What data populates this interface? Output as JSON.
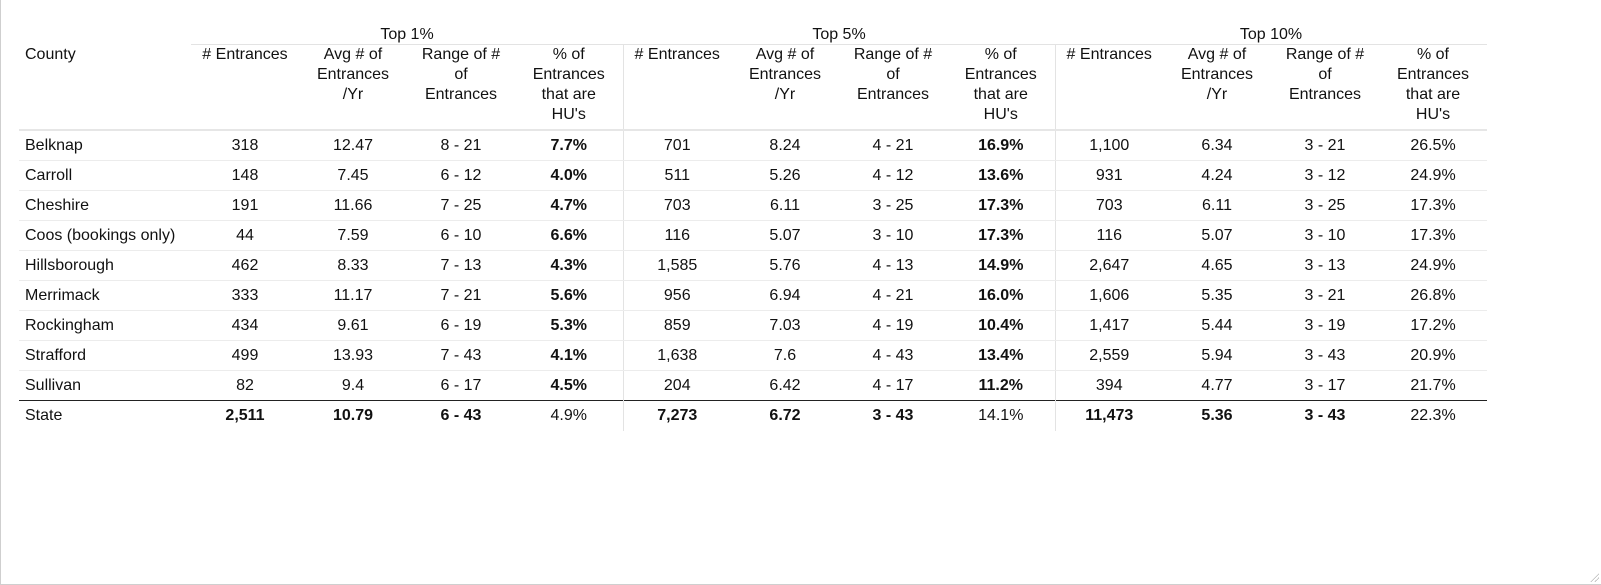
{
  "groups": [
    "Top 1%",
    "Top 5%",
    "Top 10%"
  ],
  "headers": {
    "county": "County",
    "entrances": "# Entrances",
    "avg": [
      "Avg # of",
      "Entrances",
      "/Yr"
    ],
    "range": [
      "Range of #",
      "of",
      "Entrances"
    ],
    "pct": [
      "% of",
      "Entrances",
      "that are",
      "HU's"
    ]
  },
  "rows": [
    {
      "county": "Belknap",
      "t1": {
        "n": "318",
        "avg": "12.47",
        "range": "8 - 21",
        "pct": "7.7%"
      },
      "t5": {
        "n": "701",
        "avg": "8.24",
        "range": "4 - 21",
        "pct": "16.9%"
      },
      "t10": {
        "n": "1,100",
        "avg": "6.34",
        "range": "3 - 21",
        "pct": "26.5%"
      }
    },
    {
      "county": "Carroll",
      "t1": {
        "n": "148",
        "avg": "7.45",
        "range": "6 - 12",
        "pct": "4.0%"
      },
      "t5": {
        "n": "511",
        "avg": "5.26",
        "range": "4 - 12",
        "pct": "13.6%"
      },
      "t10": {
        "n": "931",
        "avg": "4.24",
        "range": "3 - 12",
        "pct": "24.9%"
      }
    },
    {
      "county": "Cheshire",
      "t1": {
        "n": "191",
        "avg": "11.66",
        "range": "7 - 25",
        "pct": "4.7%"
      },
      "t5": {
        "n": "703",
        "avg": "6.11",
        "range": "3 - 25",
        "pct": "17.3%"
      },
      "t10": {
        "n": "703",
        "avg": "6.11",
        "range": "3 - 25",
        "pct": "17.3%"
      }
    },
    {
      "county": "Coos (bookings only)",
      "t1": {
        "n": "44",
        "avg": "7.59",
        "range": "6 - 10",
        "pct": "6.6%"
      },
      "t5": {
        "n": "116",
        "avg": "5.07",
        "range": "3 - 10",
        "pct": "17.3%"
      },
      "t10": {
        "n": "116",
        "avg": "5.07",
        "range": "3 - 10",
        "pct": "17.3%"
      }
    },
    {
      "county": "Hillsborough",
      "t1": {
        "n": "462",
        "avg": "8.33",
        "range": "7 - 13",
        "pct": "4.3%"
      },
      "t5": {
        "n": "1,585",
        "avg": "5.76",
        "range": "4 - 13",
        "pct": "14.9%"
      },
      "t10": {
        "n": "2,647",
        "avg": "4.65",
        "range": "3 - 13",
        "pct": "24.9%"
      }
    },
    {
      "county": "Merrimack",
      "t1": {
        "n": "333",
        "avg": "11.17",
        "range": "7 - 21",
        "pct": "5.6%"
      },
      "t5": {
        "n": "956",
        "avg": "6.94",
        "range": "4 - 21",
        "pct": "16.0%"
      },
      "t10": {
        "n": "1,606",
        "avg": "5.35",
        "range": "3 - 21",
        "pct": "26.8%"
      }
    },
    {
      "county": "Rockingham",
      "t1": {
        "n": "434",
        "avg": "9.61",
        "range": "6 - 19",
        "pct": "5.3%"
      },
      "t5": {
        "n": "859",
        "avg": "7.03",
        "range": "4 - 19",
        "pct": "10.4%"
      },
      "t10": {
        "n": "1,417",
        "avg": "5.44",
        "range": "3 - 19",
        "pct": "17.2%"
      }
    },
    {
      "county": "Strafford",
      "t1": {
        "n": "499",
        "avg": "13.93",
        "range": "7 - 43",
        "pct": "4.1%"
      },
      "t5": {
        "n": "1,638",
        "avg": "7.6",
        "range": "4 - 43",
        "pct": "13.4%"
      },
      "t10": {
        "n": "2,559",
        "avg": "5.94",
        "range": "3 - 43",
        "pct": "20.9%"
      }
    },
    {
      "county": "Sullivan",
      "t1": {
        "n": "82",
        "avg": "9.4",
        "range": "6 - 17",
        "pct": "4.5%"
      },
      "t5": {
        "n": "204",
        "avg": "6.42",
        "range": "4 - 17",
        "pct": "11.2%"
      },
      "t10": {
        "n": "394",
        "avg": "4.77",
        "range": "3 - 17",
        "pct": "21.7%"
      }
    }
  ],
  "state": {
    "county": "State",
    "t1": {
      "n": "2,511",
      "avg": "10.79",
      "range": "6 - 43",
      "pct": "4.9%"
    },
    "t5": {
      "n": "7,273",
      "avg": "6.72",
      "range": "3 - 43",
      "pct": "14.1%"
    },
    "t10": {
      "n": "11,473",
      "avg": "5.36",
      "range": "3 - 43",
      "pct": "22.3%"
    }
  }
}
